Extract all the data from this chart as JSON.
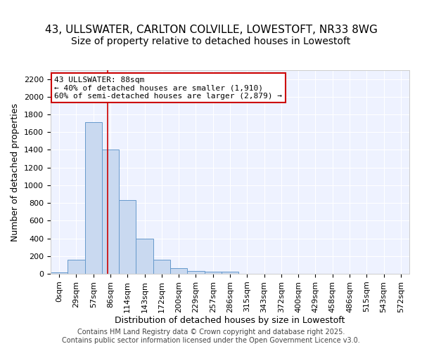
{
  "title_line1": "43, ULLSWATER, CARLTON COLVILLE, LOWESTOFT, NR33 8WG",
  "title_line2": "Size of property relative to detached houses in Lowestoft",
  "xlabel": "Distribution of detached houses by size in Lowestoft",
  "ylabel": "Number of detached properties",
  "bar_values": [
    15,
    155,
    1710,
    1400,
    835,
    395,
    160,
    60,
    30,
    25,
    25,
    0,
    0,
    0,
    0,
    0,
    0,
    0,
    0,
    0,
    0
  ],
  "bar_labels": [
    "0sqm",
    "29sqm",
    "57sqm",
    "86sqm",
    "114sqm",
    "143sqm",
    "172sqm",
    "200sqm",
    "229sqm",
    "257sqm",
    "286sqm",
    "315sqm",
    "343sqm",
    "372sqm",
    "400sqm",
    "429sqm",
    "458sqm",
    "486sqm",
    "515sqm",
    "543sqm",
    "572sqm"
  ],
  "bar_color": "#c9d9f0",
  "bar_edgecolor": "#6699cc",
  "background_color": "#eef2ff",
  "grid_color": "#ffffff",
  "annotation_text": "43 ULLSWATER: 88sqm\n← 40% of detached houses are smaller (1,910)\n60% of semi-detached houses are larger (2,879) →",
  "vline_x": 2.85,
  "vline_color": "#cc0000",
  "annotation_box_color": "#cc0000",
  "ylim": [
    0,
    2300
  ],
  "yticks": [
    0,
    200,
    400,
    600,
    800,
    1000,
    1200,
    1400,
    1600,
    1800,
    2000,
    2200
  ],
  "footer_text": "Contains HM Land Registry data © Crown copyright and database right 2025.\nContains public sector information licensed under the Open Government Licence v3.0.",
  "title_fontsize": 11,
  "axis_label_fontsize": 9,
  "tick_fontsize": 8,
  "annotation_fontsize": 8,
  "footer_fontsize": 7
}
